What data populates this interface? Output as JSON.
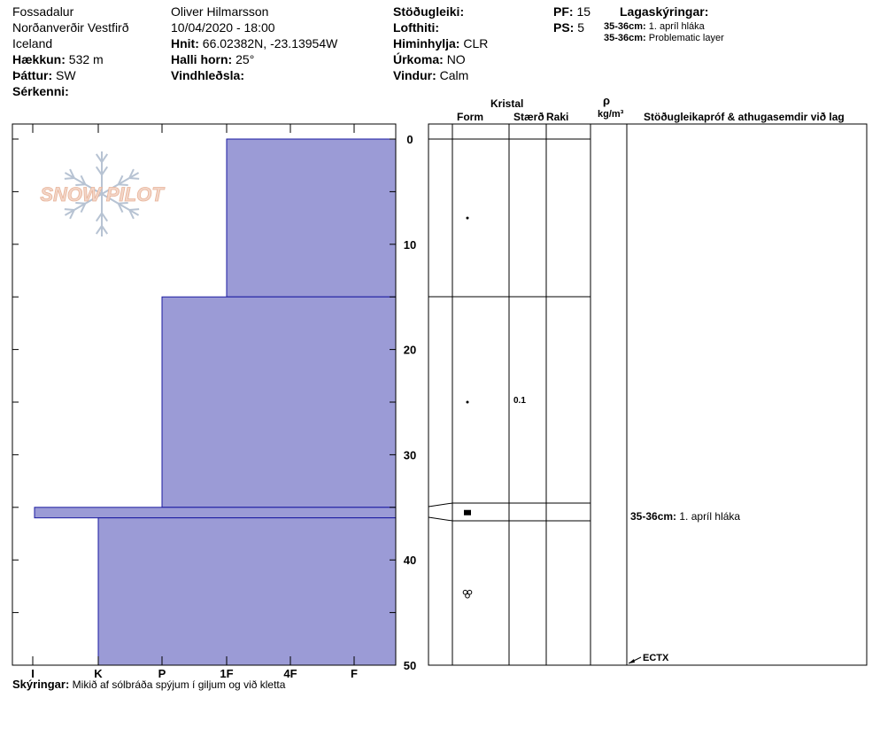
{
  "header": {
    "location": "Fossadalur",
    "region": "Norðanverðir Vestfirð",
    "country": "Iceland",
    "elevation_label": "Hækkun:",
    "elevation_value": "532 m",
    "aspect_label": "Þáttur:",
    "aspect_value": "SW",
    "features_label": "Sérkenni:",
    "observer": "Oliver Hilmarsson",
    "datetime": "10/04/2020 - 18:00",
    "coords_label": "Hnit:",
    "coords_value": "66.02382N, -23.13954W",
    "slope_label": "Halli horn:",
    "slope_value": "25°",
    "wind_loading_label": "Vindhleðsla:",
    "stability_label": "Stöðugleiki:",
    "air_temp_label": "Lofthiti:",
    "sky_label": "Himinhylja:",
    "sky_value": "CLR",
    "precip_label": "Úrkoma:",
    "precip_value": "NO",
    "wind_label": "Vindur:",
    "wind_value": "Calm",
    "pf_label": "PF:",
    "pf_value": "15",
    "ps_label": "PS:",
    "ps_value": "5",
    "layer_notes_title": "Lagaskýringar:",
    "layer_notes": [
      {
        "range": "35-36cm:",
        "text": "1. apríl hláka"
      },
      {
        "range": "35-36cm:",
        "text": "Problematic layer"
      }
    ]
  },
  "logo": {
    "text": "SNOW PILOT"
  },
  "table_headers": {
    "crystal": "Kristal",
    "form": "Form",
    "size": "Stærð",
    "moisture": "Raki",
    "rho": "ρ",
    "density_unit": "kg/m³",
    "comments": "Stöðugleikapróf & athugasemdir við lag"
  },
  "layers_table": {
    "size_entry": {
      "depth": 25,
      "text": "0.1"
    },
    "comment_entry": {
      "range": "35-36cm:",
      "text": "1. apríl hláka"
    },
    "test_result": "ECTX",
    "form_symbols": [
      {
        "depth": 7.5,
        "symbol": "dot"
      },
      {
        "depth": 25,
        "symbol": "dot"
      },
      {
        "depth": 35.5,
        "symbol": "square"
      },
      {
        "depth": 43.2,
        "symbol": "melt-form"
      }
    ]
  },
  "footer": {
    "label": "Skýringar:",
    "text": "Mikið af sólbráða spýjum í giljum og við kletta"
  },
  "chart_data": {
    "type": "bar",
    "orientation": "horizontal-step",
    "hardness_axis": {
      "ticks": [
        "I",
        "K",
        "P",
        "1F",
        "4F",
        "F"
      ]
    },
    "depth_axis": {
      "ticks": [
        0,
        10,
        20,
        30,
        40,
        50
      ],
      "range": [
        0,
        50
      ],
      "unit": "cm"
    },
    "layers": [
      {
        "top": 0,
        "bottom": 15,
        "hardness": "1F"
      },
      {
        "top": 15,
        "bottom": 35,
        "hardness": "P"
      },
      {
        "top": 35,
        "bottom": 36,
        "hardness": "I+"
      },
      {
        "top": 36,
        "bottom": 50,
        "hardness": "K"
      }
    ],
    "layer_boundaries_cm": [
      0,
      15,
      35,
      36,
      50
    ],
    "colors": {
      "fill": "#9b9bd6",
      "stroke": "#1a1aa0"
    }
  }
}
